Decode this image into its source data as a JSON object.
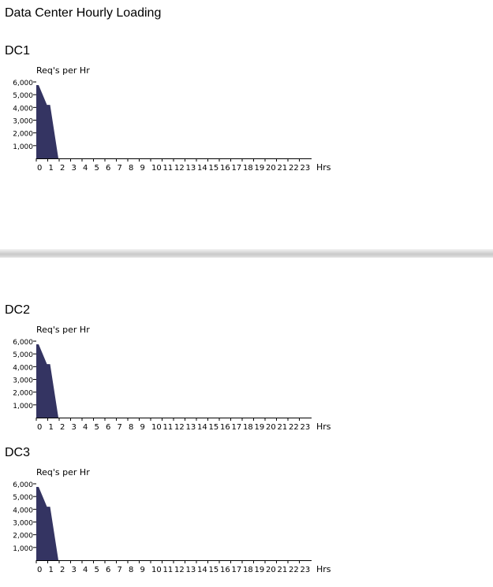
{
  "page_title": "Data Center Hourly Loading",
  "colors": {
    "bar": "#343462",
    "axis": "#000000"
  },
  "chart_data": [
    {
      "type": "area",
      "title": "DC1",
      "ylabel": "Req's per Hr",
      "xlabel": "Hrs",
      "categories": [
        "0",
        "1",
        "2",
        "3",
        "4",
        "5",
        "6",
        "7",
        "8",
        "9",
        "10",
        "11",
        "12",
        "13",
        "14",
        "15",
        "16",
        "17",
        "18",
        "19",
        "20",
        "21",
        "22",
        "23"
      ],
      "values": [
        5750,
        4200,
        0,
        0,
        0,
        0,
        0,
        0,
        0,
        0,
        0,
        0,
        0,
        0,
        0,
        0,
        0,
        0,
        0,
        0,
        0,
        0,
        0,
        0
      ],
      "yticks": [
        "1,000",
        "2,000",
        "3,000",
        "4,000",
        "5,000",
        "6,000"
      ],
      "ylim": [
        0,
        6000
      ],
      "grid": false
    },
    {
      "type": "area",
      "title": "DC2",
      "ylabel": "Req's per Hr",
      "xlabel": "Hrs",
      "categories": [
        "0",
        "1",
        "2",
        "3",
        "4",
        "5",
        "6",
        "7",
        "8",
        "9",
        "10",
        "11",
        "12",
        "13",
        "14",
        "15",
        "16",
        "17",
        "18",
        "19",
        "20",
        "21",
        "22",
        "23"
      ],
      "values": [
        5750,
        4200,
        0,
        0,
        0,
        0,
        0,
        0,
        0,
        0,
        0,
        0,
        0,
        0,
        0,
        0,
        0,
        0,
        0,
        0,
        0,
        0,
        0,
        0
      ],
      "yticks": [
        "1,000",
        "2,000",
        "3,000",
        "4,000",
        "5,000",
        "6,000"
      ],
      "ylim": [
        0,
        6000
      ],
      "grid": false
    },
    {
      "type": "area",
      "title": "DC3",
      "ylabel": "Req's per Hr",
      "xlabel": "Hrs",
      "categories": [
        "0",
        "1",
        "2",
        "3",
        "4",
        "5",
        "6",
        "7",
        "8",
        "9",
        "10",
        "11",
        "12",
        "13",
        "14",
        "15",
        "16",
        "17",
        "18",
        "19",
        "20",
        "21",
        "22",
        "23"
      ],
      "values": [
        5750,
        4200,
        0,
        0,
        0,
        0,
        0,
        0,
        0,
        0,
        0,
        0,
        0,
        0,
        0,
        0,
        0,
        0,
        0,
        0,
        0,
        0,
        0,
        0
      ],
      "yticks": [
        "1,000",
        "2,000",
        "3,000",
        "4,000",
        "5,000",
        "6,000"
      ],
      "ylim": [
        0,
        6000
      ],
      "grid": false
    }
  ]
}
